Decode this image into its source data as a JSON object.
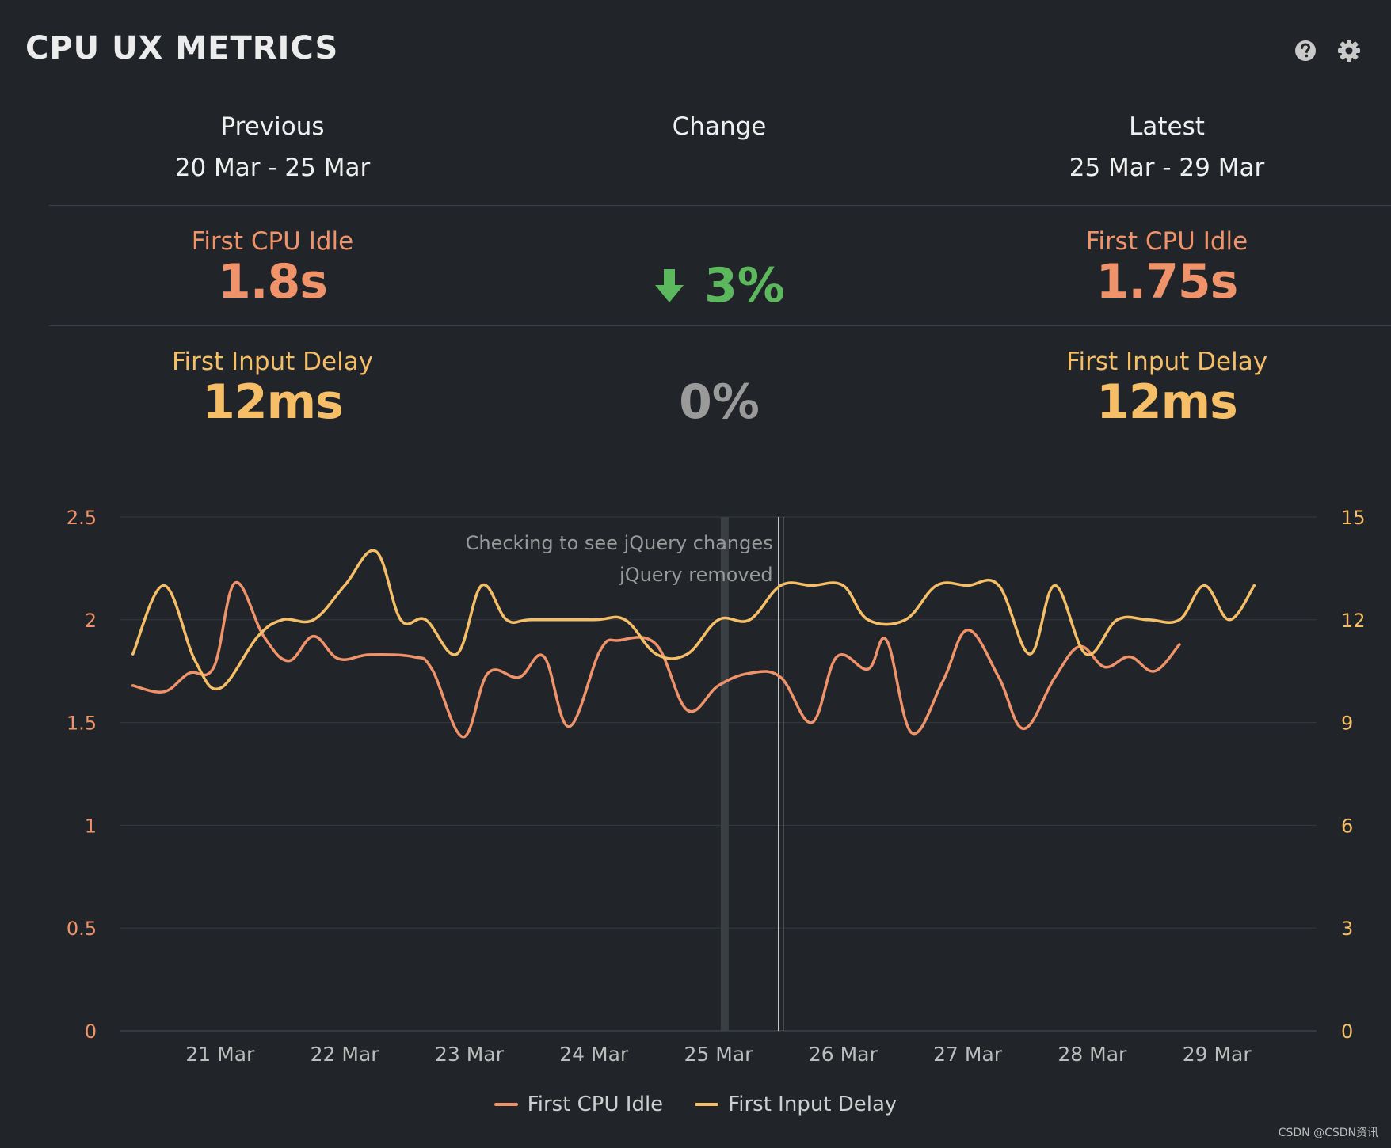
{
  "title": "CPU UX METRICS",
  "icons": {
    "help": "help-icon",
    "settings": "gear-icon"
  },
  "columns": {
    "previous": {
      "label": "Previous",
      "range": "20 Mar - 25 Mar"
    },
    "change": {
      "label": "Change"
    },
    "latest": {
      "label": "Latest",
      "range": "25 Mar - 29 Mar"
    }
  },
  "metrics": [
    {
      "name": "First CPU Idle",
      "previous": "1.8s",
      "latest": "1.75s",
      "change": "3%",
      "direction": "down"
    },
    {
      "name": "First Input Delay",
      "previous": "12ms",
      "latest": "12ms",
      "change": "0%",
      "direction": "none"
    }
  ],
  "colors": {
    "cpu": "#f0926a",
    "fid": "#f6bf67",
    "good": "#5cb85c",
    "neutral": "#9a9a9a",
    "background": "#212529"
  },
  "legend": [
    "First CPU Idle",
    "First Input Delay"
  ],
  "credit": "CSDN @CSDN资讯",
  "chart_data": {
    "type": "line",
    "title": "",
    "xlabel": "",
    "x_ticks": [
      "21 Mar",
      "22 Mar",
      "23 Mar",
      "24 Mar",
      "25 Mar",
      "26 Mar",
      "27 Mar",
      "28 Mar",
      "29 Mar"
    ],
    "x_range": [
      20.2,
      29.8
    ],
    "y_left": {
      "ticks": [
        0,
        0.5,
        1,
        1.5,
        2,
        2.5
      ],
      "ylim": [
        0,
        2.5
      ],
      "series": "First CPU Idle"
    },
    "y_right": {
      "ticks": [
        0,
        3,
        6,
        9,
        12,
        15
      ],
      "ylim": [
        0,
        15
      ],
      "series": "First Input Delay"
    },
    "grid": true,
    "legend_position": "bottom",
    "annotations": [
      {
        "x": 25.05,
        "label": "Checking to see jQuery changes",
        "style": "band"
      },
      {
        "x": 25.5,
        "label": "jQuery removed",
        "style": "line"
      }
    ],
    "series": [
      {
        "name": "First CPU Idle",
        "axis": "left",
        "points": [
          [
            20.3,
            1.68
          ],
          [
            20.55,
            1.65
          ],
          [
            20.75,
            1.74
          ],
          [
            20.95,
            1.77
          ],
          [
            21.12,
            2.18
          ],
          [
            21.35,
            1.92
          ],
          [
            21.55,
            1.8
          ],
          [
            21.75,
            1.92
          ],
          [
            21.95,
            1.81
          ],
          [
            22.2,
            1.83
          ],
          [
            22.55,
            1.82
          ],
          [
            22.7,
            1.76
          ],
          [
            22.95,
            1.43
          ],
          [
            23.15,
            1.74
          ],
          [
            23.4,
            1.72
          ],
          [
            23.6,
            1.82
          ],
          [
            23.8,
            1.48
          ],
          [
            24.05,
            1.85
          ],
          [
            24.2,
            1.9
          ],
          [
            24.5,
            1.88
          ],
          [
            24.75,
            1.56
          ],
          [
            25.0,
            1.68
          ],
          [
            25.25,
            1.74
          ],
          [
            25.5,
            1.72
          ],
          [
            25.75,
            1.5
          ],
          [
            25.95,
            1.82
          ],
          [
            26.2,
            1.76
          ],
          [
            26.35,
            1.9
          ],
          [
            26.55,
            1.45
          ],
          [
            26.8,
            1.7
          ],
          [
            27.0,
            1.95
          ],
          [
            27.25,
            1.72
          ],
          [
            27.45,
            1.47
          ],
          [
            27.7,
            1.72
          ],
          [
            27.9,
            1.87
          ],
          [
            28.1,
            1.77
          ],
          [
            28.3,
            1.82
          ],
          [
            28.5,
            1.75
          ],
          [
            28.7,
            1.88
          ]
        ]
      },
      {
        "name": "First Input Delay",
        "axis": "right",
        "points": [
          [
            20.3,
            11
          ],
          [
            20.55,
            13
          ],
          [
            20.8,
            10.8
          ],
          [
            21.0,
            10
          ],
          [
            21.3,
            11.5
          ],
          [
            21.5,
            12
          ],
          [
            21.75,
            12
          ],
          [
            22.0,
            13
          ],
          [
            22.25,
            14
          ],
          [
            22.45,
            12
          ],
          [
            22.65,
            12
          ],
          [
            22.9,
            11
          ],
          [
            23.1,
            13
          ],
          [
            23.3,
            12
          ],
          [
            23.5,
            12
          ],
          [
            24.0,
            12
          ],
          [
            24.25,
            12
          ],
          [
            24.5,
            11
          ],
          [
            24.75,
            11
          ],
          [
            25.0,
            12
          ],
          [
            25.25,
            12
          ],
          [
            25.5,
            13
          ],
          [
            25.75,
            13
          ],
          [
            26.0,
            13
          ],
          [
            26.2,
            12
          ],
          [
            26.5,
            12
          ],
          [
            26.75,
            13
          ],
          [
            27.0,
            13
          ],
          [
            27.25,
            13
          ],
          [
            27.5,
            11
          ],
          [
            27.7,
            13
          ],
          [
            27.95,
            11
          ],
          [
            28.2,
            12
          ],
          [
            28.45,
            12
          ],
          [
            28.7,
            12
          ],
          [
            28.9,
            13
          ],
          [
            29.1,
            12
          ],
          [
            29.3,
            13
          ]
        ]
      }
    ]
  }
}
